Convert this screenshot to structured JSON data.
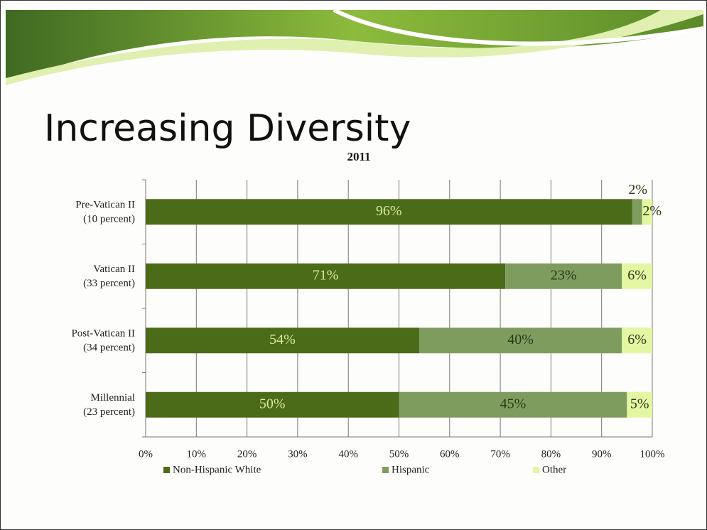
{
  "title": "Increasing Diversity",
  "chart_data": {
    "type": "stacked-bar-horizontal",
    "title": "2011",
    "categories": [
      "Pre-Vatican II\n(10 percent)",
      "Vatican II\n(33 percent)",
      "Post-Vatican II\n(34 percent)",
      "Millennial\n(23 percent)"
    ],
    "series": [
      {
        "name": "Non-Hispanic White",
        "color": "#4b6b19",
        "label_color": "#d9ea9c",
        "values": [
          96,
          71,
          54,
          50
        ],
        "value_labels": [
          "96%",
          "71%",
          "54%",
          "50%"
        ]
      },
      {
        "name": "Hispanic",
        "color": "#7f9c5f",
        "label_color": "#2b3818",
        "values": [
          2,
          23,
          40,
          45
        ],
        "value_labels": [
          "2%",
          "23%",
          "40%",
          "45%"
        ]
      },
      {
        "name": "Other",
        "color": "#e3f6a2",
        "label_color": "#2b3818",
        "values": [
          2,
          6,
          6,
          5
        ],
        "value_labels": [
          "2%",
          "6%",
          "6%",
          "5%"
        ]
      }
    ],
    "xlim": [
      0,
      100
    ],
    "xticks": [
      {
        "value": 0,
        "label": "0%"
      },
      {
        "value": 10,
        "label": "10%"
      },
      {
        "value": 20,
        "label": "20%"
      },
      {
        "value": 30,
        "label": "30%"
      },
      {
        "value": 40,
        "label": "40%"
      },
      {
        "value": 50,
        "label": "50%"
      },
      {
        "value": 60,
        "label": "60%"
      },
      {
        "value": 70,
        "label": "70%"
      },
      {
        "value": 80,
        "label": "80%"
      },
      {
        "value": 90,
        "label": "90%"
      },
      {
        "value": 100,
        "label": "100%"
      }
    ],
    "grid": true,
    "legend": "bottom"
  }
}
